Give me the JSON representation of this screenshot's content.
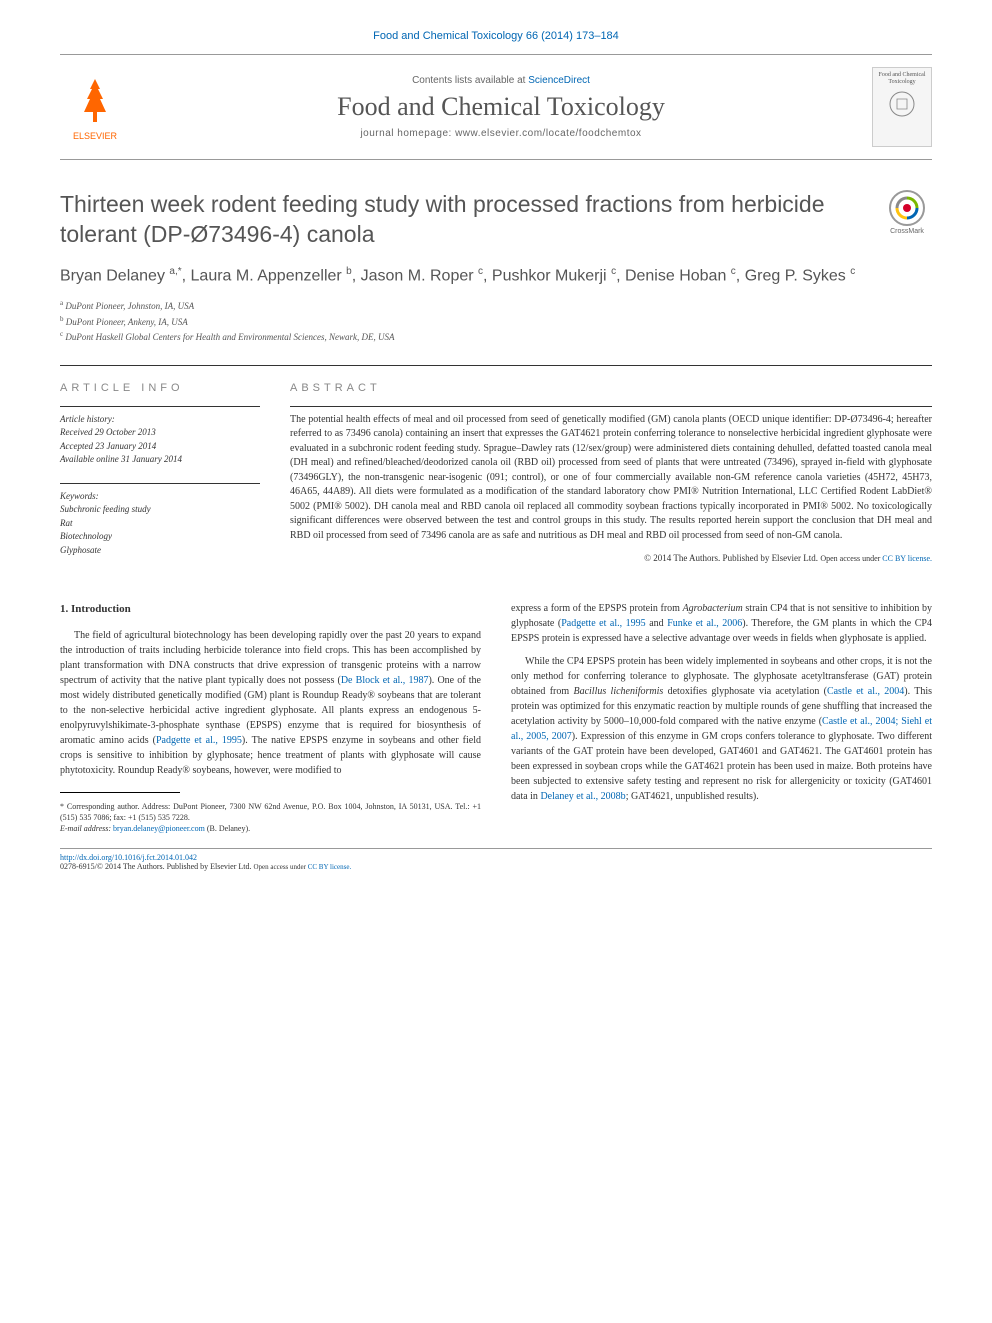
{
  "colors": {
    "link": "#0066b3",
    "text_main": "#333333",
    "text_muted": "#666666",
    "orange": "#ff6600",
    "title_grey": "#555555"
  },
  "typography": {
    "body_font": "Georgia, Times New Roman, serif",
    "sans_font": "Arial, sans-serif",
    "article_title_size": 23,
    "journal_title_size": 26,
    "body_size": 10,
    "abstract_size": 10,
    "affiliation_size": 9,
    "footnote_size": 8
  },
  "journal_ref": "Food and Chemical Toxicology 66 (2014) 173–184",
  "header": {
    "contents_line_prefix": "Contents lists available at ",
    "contents_link": "ScienceDirect",
    "journal_title": "Food and Chemical Toxicology",
    "homepage_prefix": "journal homepage: ",
    "homepage_url": "www.elsevier.com/locate/foodchemtox",
    "publisher": "ELSEVIER",
    "cover_text": "Food and Chemical Toxicology"
  },
  "crossmark_label": "CrossMark",
  "article": {
    "title": "Thirteen week rodent feeding study with processed fractions from herbicide tolerant (DP-Ø73496-4) canola",
    "authors_html": "Bryan Delaney <sup>a,*</sup>, Laura M. Appenzeller <sup>b</sup>, Jason M. Roper <sup>c</sup>, Pushkor Mukerji <sup>c</sup>, Denise Hoban <sup>c</sup>, Greg P. Sykes <sup>c</sup>",
    "affiliations": {
      "a": "DuPont Pioneer, Johnston, IA, USA",
      "b": "DuPont Pioneer, Ankeny, IA, USA",
      "c": "DuPont Haskell Global Centers for Health and Environmental Sciences, Newark, DE, USA"
    }
  },
  "article_info": {
    "heading": "ARTICLE INFO",
    "history_label": "Article history:",
    "received": "Received 29 October 2013",
    "accepted": "Accepted 23 January 2014",
    "online": "Available online 31 January 2014",
    "keywords_label": "Keywords:",
    "keywords": [
      "Subchronic feeding study",
      "Rat",
      "Biotechnology",
      "Glyphosate"
    ]
  },
  "abstract": {
    "heading": "ABSTRACT",
    "text": "The potential health effects of meal and oil processed from seed of genetically modified (GM) canola plants (OECD unique identifier: DP-Ø73496-4; hereafter referred to as 73496 canola) containing an insert that expresses the GAT4621 protein conferring tolerance to nonselective herbicidal ingredient glyphosate were evaluated in a subchronic rodent feeding study. Sprague–Dawley rats (12/sex/group) were administered diets containing dehulled, defatted toasted canola meal (DH meal) and refined/bleached/deodorized canola oil (RBD oil) processed from seed of plants that were untreated (73496), sprayed in-field with glyphosate (73496GLY), the non-transgenic near-isogenic (091; control), or one of four commercially available non-GM reference canola varieties (45H72, 45H73, 46A65, 44A89). All diets were formulated as a modification of the standard laboratory chow PMI® Nutrition International, LLC Certified Rodent LabDiet® 5002 (PMI® 5002). DH canola meal and RBD canola oil replaced all commodity soybean fractions typically incorporated in PMI® 5002. No toxicologically significant differences were observed between the test and control groups in this study. The results reported herein support the conclusion that DH meal and RBD oil processed from seed of 73496 canola are as safe and nutritious as DH meal and RBD oil processed from seed of non-GM canola.",
    "copyright": "© 2014 The Authors. Published by Elsevier Ltd. ",
    "license_prefix": "Open access under ",
    "license_link": "CC BY license."
  },
  "body": {
    "intro_heading": "1. Introduction",
    "col1_p1": "The field of agricultural biotechnology has been developing rapidly over the past 20 years to expand the introduction of traits including herbicide tolerance into field crops. This has been accomplished by plant transformation with DNA constructs that drive expression of transgenic proteins with a narrow spectrum of activity that the native plant typically does not possess (",
    "col1_ref1": "De Block et al., 1987",
    "col1_p1b": "). One of the most widely distributed genetically modified (GM) plant is Roundup Ready® soybeans that are tolerant to the non-selective herbicidal active ingredient glyphosate. All plants express an endogenous 5-enolpyruvylshikimate-3-phosphate synthase (EPSPS) enzyme that is required for biosynthesis of aromatic amino acids (",
    "col1_ref2": "Padgette et al., 1995",
    "col1_p1c": "). The native EPSPS enzyme in soybeans and other field crops is sensitive to inhibition by glyphosate; hence treatment of plants with glyphosate will cause phytotoxicity. Roundup Ready® soybeans, however, were modified to",
    "col2_p1a": "express a form of the EPSPS protein from ",
    "col2_p1a_ital": "Agrobacterium",
    "col2_p1b": " strain CP4 that is not sensitive to inhibition by glyphosate (",
    "col2_ref1": "Padgette et al., 1995",
    "col2_and": " and ",
    "col2_ref2": "Funke et al., 2006",
    "col2_p1c": "). Therefore, the GM plants in which the CP4 EPSPS protein is expressed have a selective advantage over weeds in fields when glyphosate is applied.",
    "col2_p2a": "While the CP4 EPSPS protein has been widely implemented in soybeans and other crops, it is not the only method for conferring tolerance to glyphosate. The glyphosate acetyltransferase (GAT) protein obtained from ",
    "col2_p2a_ital": "Bacillus licheniformis",
    "col2_p2b": " detoxifies glyphosate via acetylation (",
    "col2_ref3": "Castle et al., 2004",
    "col2_p2c": "). This protein was optimized for this enzymatic reaction by multiple rounds of gene shuffling that increased the acetylation activity by 5000–10,000-fold compared with the native enzyme (",
    "col2_ref4": "Castle et al., 2004; Siehl et al., 2005, 2007",
    "col2_p2d": "). Expression of this enzyme in GM crops confers tolerance to glyphosate. Two different variants of the GAT protein have been developed, GAT4601 and GAT4621. The GAT4601 protein has been expressed in soybean crops while the GAT4621 protein has been used in maize. Both proteins have been subjected to extensive safety testing and represent no risk for allergenicity or toxicity (GAT4601 data in ",
    "col2_ref5": "Delaney et al., 2008b",
    "col2_p2e": "; GAT4621, unpublished results)."
  },
  "footnote": {
    "marker": "*",
    "text": "Corresponding author. Address: DuPont Pioneer, 7300 NW 62nd Avenue, P.O. Box 1004, Johnston, IA 50131, USA. Tel.: +1 (515) 535 7086; fax: +1 (515) 535 7228.",
    "email_label": "E-mail address: ",
    "email": "bryan.delaney@pioneer.com",
    "email_suffix": " (B. Delaney)."
  },
  "doi": {
    "url": "http://dx.doi.org/10.1016/j.fct.2014.01.042",
    "issn_line": "0278-6915/© 2014 The Authors. Published by Elsevier Ltd. ",
    "license_prefix": "Open access under ",
    "license_link": "CC BY license."
  }
}
